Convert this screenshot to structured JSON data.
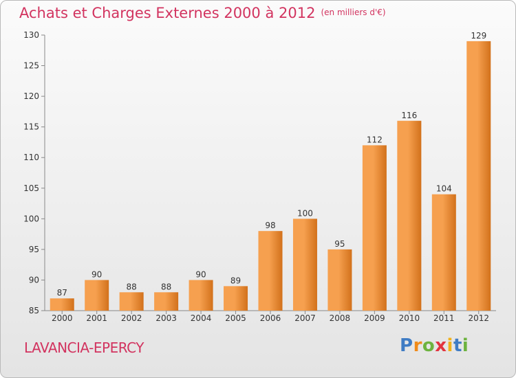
{
  "header": {
    "title": "Achats et Charges Externes 2000 à 2012",
    "unit": "(en milliers d'€)"
  },
  "footer": {
    "place": "LAVANCIA-EPERCY",
    "brand_letters": [
      {
        "ch": "P",
        "color": "#3f7cc4"
      },
      {
        "ch": "r",
        "color": "#f08b1a"
      },
      {
        "ch": "o",
        "color": "#6db33f"
      },
      {
        "ch": "x",
        "color": "#e2343f"
      },
      {
        "ch": "i",
        "color": "#f2b21b"
      },
      {
        "ch": "t",
        "color": "#3f7cc4"
      },
      {
        "ch": "i",
        "color": "#6db33f"
      }
    ]
  },
  "chart_data": {
    "type": "bar",
    "categories": [
      "2000",
      "2001",
      "2002",
      "2003",
      "2004",
      "2005",
      "2006",
      "2007",
      "2008",
      "2009",
      "2010",
      "2011",
      "2012"
    ],
    "values": [
      87,
      90,
      88,
      88,
      90,
      89,
      98,
      100,
      95,
      112,
      116,
      104,
      129
    ],
    "ylim": [
      85,
      130
    ],
    "yticks": [
      85,
      90,
      95,
      100,
      105,
      110,
      115,
      120,
      125,
      130
    ],
    "grid": false,
    "colors": {
      "bar_light": "#f6a04f",
      "bar_dark": "#d2711b",
      "title": "#d2335f"
    }
  }
}
